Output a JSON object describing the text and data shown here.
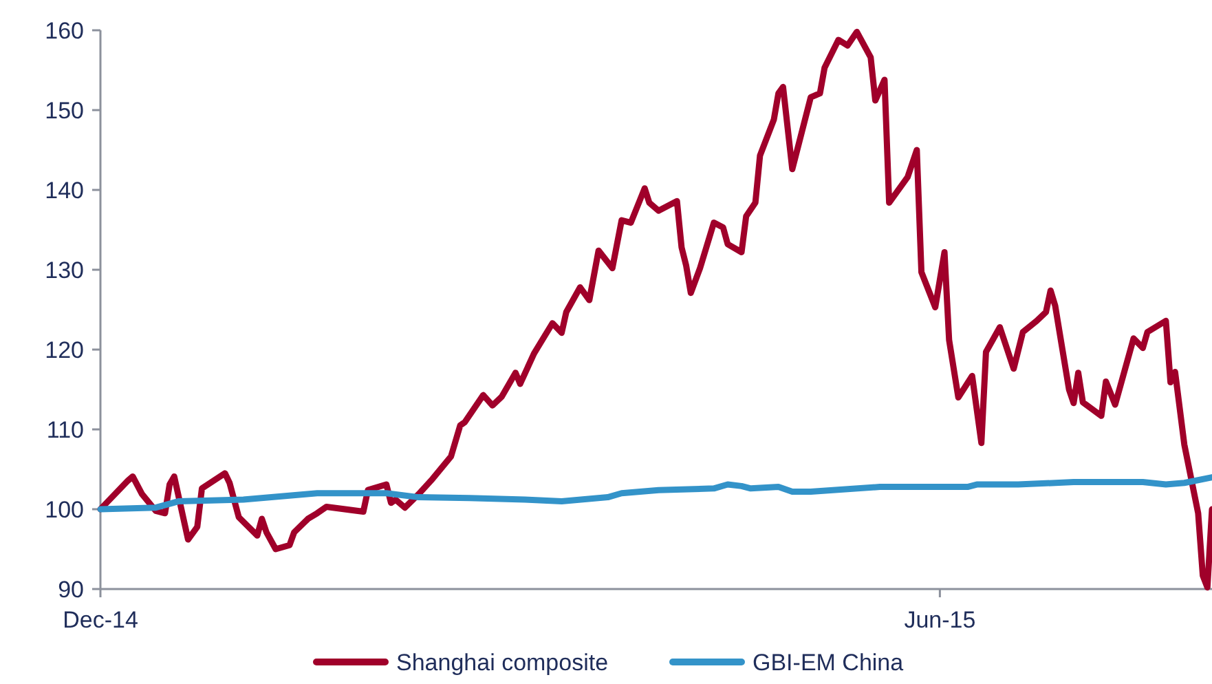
{
  "chart_data": {
    "type": "line",
    "xlim": [
      "2014-12-01",
      "2015-07-30"
    ],
    "xticks": [
      {
        "value": "2014-12-01",
        "label": "Dec-14"
      },
      {
        "value": "2015-06-01",
        "label": "Jun-15"
      }
    ],
    "ylim": [
      90,
      160
    ],
    "yticks": [
      90,
      100,
      110,
      120,
      130,
      140,
      150,
      160
    ],
    "grid": false,
    "legend": "bottom",
    "marker": "none",
    "line_style": "solid",
    "series": [
      {
        "name": "Shanghai composite",
        "color": "#a0002a",
        "x": [
          "2014-12-01",
          "2014-12-07",
          "2014-12-08",
          "2014-12-10",
          "2014-12-13",
          "2014-12-15",
          "2014-12-16",
          "2014-12-17",
          "2014-12-20",
          "2014-12-22",
          "2014-12-23",
          "2014-12-28",
          "2014-12-29",
          "2014-12-31",
          "2015-01-04",
          "2015-01-05",
          "2015-01-06",
          "2015-01-08",
          "2015-01-11",
          "2015-01-12",
          "2015-01-15",
          "2015-01-17",
          "2015-01-19",
          "2015-01-27",
          "2015-01-28",
          "2015-02-01",
          "2015-02-02",
          "2015-02-03",
          "2015-02-05",
          "2015-02-08",
          "2015-02-11",
          "2015-02-15",
          "2015-02-17",
          "2015-02-18",
          "2015-02-22",
          "2015-02-24",
          "2015-02-26",
          "2015-03-01",
          "2015-03-02",
          "2015-03-05",
          "2015-03-09",
          "2015-03-11",
          "2015-03-12",
          "2015-03-15",
          "2015-03-17",
          "2015-03-19",
          "2015-03-22",
          "2015-03-24",
          "2015-03-26",
          "2015-03-29",
          "2015-03-30",
          "2015-04-01",
          "2015-04-05",
          "2015-04-06",
          "2015-04-07",
          "2015-04-08",
          "2015-04-10",
          "2015-04-13",
          "2015-04-15",
          "2015-04-16",
          "2015-04-19",
          "2015-04-20",
          "2015-04-22",
          "2015-04-23",
          "2015-04-26",
          "2015-04-27",
          "2015-04-28",
          "2015-04-30",
          "2015-05-04",
          "2015-05-06",
          "2015-05-07",
          "2015-05-10",
          "2015-05-12",
          "2015-05-14",
          "2015-05-17",
          "2015-05-18",
          "2015-05-20",
          "2015-05-21",
          "2015-05-25",
          "2015-05-27",
          "2015-05-28",
          "2015-05-31",
          "2015-06-02",
          "2015-06-03",
          "2015-06-05",
          "2015-06-08",
          "2015-06-10",
          "2015-06-11",
          "2015-06-14",
          "2015-06-17",
          "2015-06-19",
          "2015-06-22",
          "2015-06-24",
          "2015-06-25",
          "2015-06-26",
          "2015-06-29",
          "2015-06-30",
          "2015-07-01",
          "2015-07-02",
          "2015-07-06",
          "2015-07-07",
          "2015-07-09",
          "2015-07-13",
          "2015-07-15",
          "2015-07-16",
          "2015-07-20",
          "2015-07-21",
          "2015-07-22",
          "2015-07-24",
          "2015-07-27",
          "2015-07-28",
          "2015-07-29",
          "2015-07-30"
        ],
        "values": [
          100,
          103.6,
          104.1,
          101.9,
          99.8,
          99.5,
          103.1,
          104.1,
          96.2,
          97.8,
          102.6,
          104.5,
          103.3,
          99,
          96.7,
          98.8,
          97.1,
          95,
          95.5,
          97.1,
          98.8,
          99.5,
          100.3,
          99.7,
          102.4,
          103.1,
          100.8,
          101.2,
          100.2,
          101.9,
          103.8,
          106.6,
          110.5,
          110.9,
          114.3,
          113,
          114.1,
          117.1,
          115.7,
          119.5,
          123.3,
          122.1,
          124.7,
          127.8,
          126.2,
          132.4,
          130.2,
          136.2,
          135.9,
          140.2,
          138.4,
          137.4,
          138.6,
          132.8,
          130.5,
          127.1,
          130.2,
          135.9,
          135.3,
          133.2,
          132.2,
          136.7,
          138.4,
          144.3,
          148.8,
          152.1,
          152.9,
          142.6,
          151.6,
          152.1,
          155.3,
          158.8,
          158.1,
          159.8,
          156.6,
          151.2,
          153.8,
          138.4,
          141.6,
          145,
          129.7,
          125.3,
          132.2,
          121.2,
          114,
          116.7,
          108.3,
          119.7,
          122.8,
          117.6,
          122.2,
          123.6,
          124.7,
          127.4,
          125.5,
          115,
          113.3,
          117.1,
          113.4,
          111.7,
          116,
          113.1,
          121.4,
          120.2,
          122.2,
          123.6,
          115.9,
          117.2,
          108.1,
          99.5,
          91.7,
          90.2,
          100
        ]
      },
      {
        "name": "GBI-EM China",
        "color": "#3393c9",
        "x": [
          "2014-12-01",
          "2014-12-13",
          "2014-12-18",
          "2015-01-01",
          "2015-01-17",
          "2015-02-01",
          "2015-02-08",
          "2015-02-19",
          "2015-03-03",
          "2015-03-11",
          "2015-03-21",
          "2015-03-24",
          "2015-04-01",
          "2015-04-13",
          "2015-04-16",
          "2015-04-19",
          "2015-04-21",
          "2015-04-27",
          "2015-04-30",
          "2015-05-04",
          "2015-05-19",
          "2015-06-07",
          "2015-06-09",
          "2015-06-18",
          "2015-06-30",
          "2015-07-15",
          "2015-07-20",
          "2015-07-24",
          "2015-07-30"
        ],
        "values": [
          100,
          100.2,
          101,
          101.2,
          102,
          102,
          101.5,
          101.4,
          101.2,
          101,
          101.5,
          102,
          102.4,
          102.6,
          103.1,
          102.9,
          102.6,
          102.8,
          102.2,
          102.2,
          102.8,
          102.8,
          103.1,
          103.1,
          103.4,
          103.4,
          103.1,
          103.3,
          104
        ]
      }
    ]
  }
}
